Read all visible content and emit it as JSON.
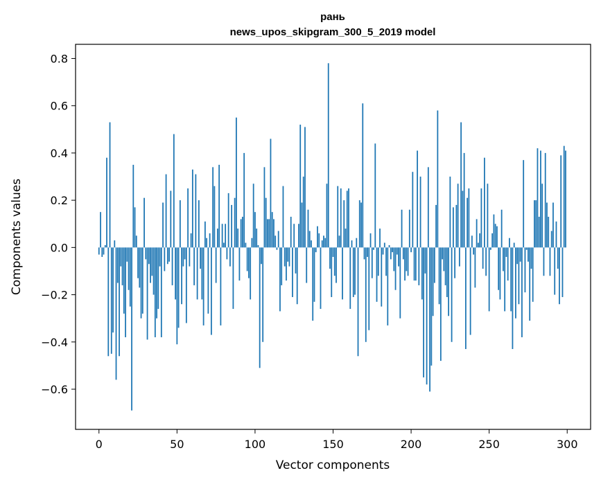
{
  "chart_data": {
    "type": "bar",
    "title": "рань",
    "subtitle": "news_upos_skipgram_300_5_2019 model",
    "xlabel": "Vector components",
    "ylabel": "Components values",
    "xlim": [
      -15,
      315
    ],
    "ylim": [
      -0.77,
      0.86
    ],
    "xticks": [
      0,
      50,
      100,
      150,
      200,
      250,
      300
    ],
    "xtick_labels": [
      "0",
      "50",
      "100",
      "150",
      "200",
      "250",
      "300"
    ],
    "yticks": [
      -0.6,
      -0.4,
      -0.2,
      0.0,
      0.2,
      0.4,
      0.6,
      0.8
    ],
    "ytick_labels": [
      "−0.6",
      "−0.4",
      "−0.2",
      "0.0",
      "0.2",
      "0.4",
      "0.6",
      "0.8"
    ],
    "grid": false,
    "bar_color": "#1f77b4",
    "values": [
      -0.03,
      0.15,
      -0.04,
      -0.03,
      0.01,
      0.38,
      -0.46,
      0.53,
      -0.45,
      -0.36,
      0.03,
      -0.56,
      -0.15,
      -0.46,
      -0.08,
      -0.16,
      -0.28,
      -0.38,
      -0.06,
      -0.18,
      -0.25,
      -0.69,
      0.35,
      0.17,
      0.05,
      -0.13,
      -0.17,
      -0.3,
      -0.28,
      0.21,
      -0.05,
      -0.39,
      -0.07,
      -0.15,
      -0.12,
      -0.2,
      -0.38,
      -0.3,
      -0.26,
      -0.08,
      -0.38,
      0.19,
      -0.1,
      0.31,
      -0.07,
      -0.06,
      0.24,
      -0.16,
      0.48,
      -0.22,
      -0.41,
      -0.34,
      0.2,
      -0.24,
      -0.08,
      -0.05,
      -0.32,
      0.25,
      -0.08,
      0.06,
      0.33,
      -0.16,
      0.31,
      -0.22,
      0.2,
      -0.09,
      -0.22,
      -0.33,
      0.11,
      0.04,
      -0.28,
      0.06,
      -0.37,
      0.34,
      0.26,
      -0.15,
      0.08,
      0.35,
      -0.33,
      0.1,
      0.02,
      0.1,
      -0.05,
      0.23,
      -0.08,
      0.18,
      -0.26,
      0.21,
      0.55,
      0.08,
      -0.14,
      0.12,
      0.13,
      0.4,
      0.02,
      -0.1,
      -0.13,
      -0.22,
      0.04,
      0.27,
      0.15,
      0.08,
      0.01,
      -0.51,
      -0.07,
      -0.4,
      0.34,
      0.21,
      0.12,
      0.12,
      0.46,
      0.15,
      0.12,
      0.05,
      -0.01,
      0.07,
      -0.27,
      -0.16,
      0.26,
      -0.08,
      -0.14,
      -0.06,
      -0.08,
      0.13,
      -0.21,
      0.1,
      -0.11,
      -0.24,
      0.1,
      0.52,
      0.19,
      0.3,
      0.51,
      -0.15,
      0.16,
      0.07,
      0.03,
      -0.31,
      -0.23,
      -0.02,
      0.09,
      0.06,
      -0.26,
      0.03,
      0.05,
      0.04,
      0.27,
      0.78,
      -0.09,
      -0.21,
      -0.04,
      -0.12,
      -0.15,
      0.26,
      0.05,
      0.25,
      -0.22,
      0.2,
      0.08,
      0.24,
      0.25,
      -0.26,
      0.03,
      -0.21,
      -0.2,
      0.04,
      -0.46,
      0.2,
      0.19,
      0.61,
      -0.05,
      -0.4,
      -0.04,
      -0.35,
      0.06,
      -0.13,
      -0.01,
      0.44,
      -0.23,
      -0.12,
      0.08,
      -0.25,
      -0.03,
      0.02,
      -0.12,
      -0.33,
      0.01,
      -0.05,
      -0.02,
      -0.1,
      -0.18,
      -0.03,
      -0.08,
      -0.3,
      0.16,
      -0.05,
      -0.14,
      -0.1,
      -0.12,
      0.16,
      -0.02,
      0.32,
      -0.14,
      -0.14,
      0.41,
      -0.16,
      0.3,
      -0.22,
      -0.55,
      -0.11,
      -0.58,
      0.34,
      -0.61,
      -0.5,
      -0.29,
      -0.15,
      0.18,
      0.58,
      -0.24,
      -0.48,
      -0.05,
      -0.1,
      -0.16,
      -0.21,
      -0.29,
      0.3,
      -0.4,
      0.17,
      -0.13,
      0.18,
      0.27,
      -0.08,
      0.53,
      0.24,
      0.4,
      -0.43,
      0.21,
      0.25,
      -0.37,
      0.05,
      -0.03,
      -0.17,
      0.12,
      0.02,
      0.06,
      0.25,
      -0.09,
      0.38,
      -0.12,
      0.27,
      -0.27,
      -0.01,
      0.06,
      0.14,
      0.1,
      0.09,
      -0.18,
      -0.22,
      0.16,
      -0.1,
      -0.27,
      -0.04,
      -0.14,
      0.04,
      -0.27,
      -0.43,
      0.02,
      -0.3,
      -0.07,
      -0.24,
      -0.06,
      -0.38,
      0.37,
      -0.19,
      -0.01,
      -0.06,
      -0.31,
      -0.09,
      -0.23,
      0.2,
      0.2,
      0.42,
      0.13,
      0.41,
      0.27,
      -0.12,
      0.4,
      0.19,
      0.13,
      -0.12,
      0.07,
      0.19,
      -0.2,
      0.11,
      -0.09,
      -0.24,
      0.39,
      -0.21,
      0.43,
      0.41
    ]
  }
}
